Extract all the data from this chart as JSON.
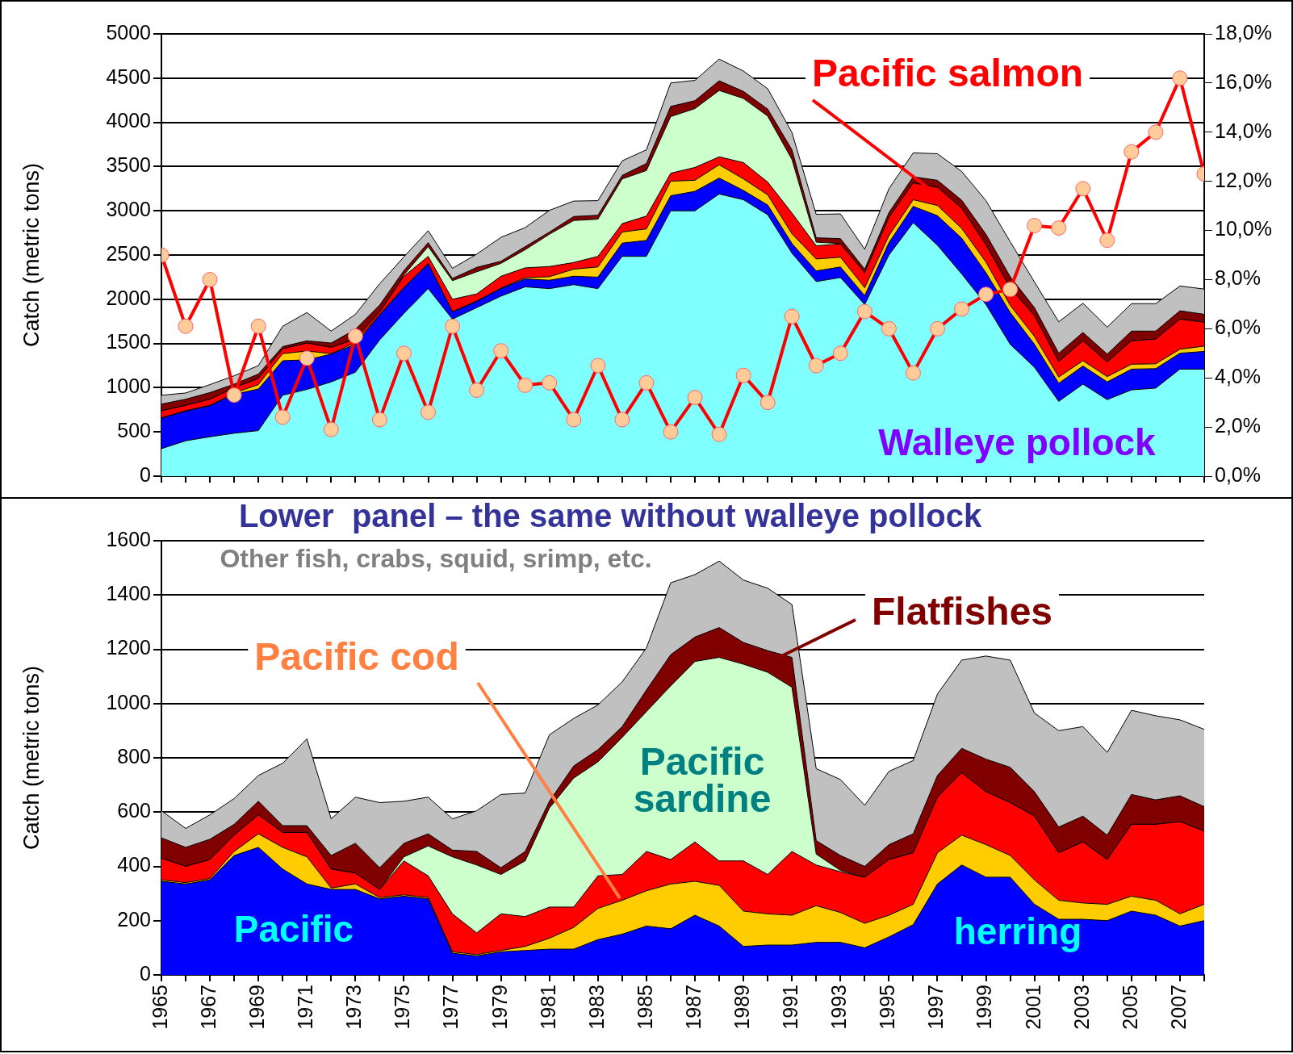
{
  "chart_data": [
    {
      "type": "area",
      "stacked": true,
      "ylabel": "Catch (metric tons)",
      "grid": "y",
      "legend": false,
      "tick_labels": "y",
      "x": [
        1965,
        1966,
        1967,
        1968,
        1969,
        1970,
        1971,
        1972,
        1973,
        1974,
        1975,
        1976,
        1977,
        1978,
        1979,
        1980,
        1981,
        1982,
        1983,
        1984,
        1985,
        1986,
        1987,
        1988,
        1989,
        1990,
        1991,
        1992,
        1993,
        1994,
        1995,
        1996,
        1997,
        1998,
        1999,
        2000,
        2001,
        2002,
        2003,
        2004,
        2005,
        2006,
        2007,
        2008
      ],
      "xlim": [
        1965,
        2008
      ],
      "xticks": [
        1965,
        1966,
        1967,
        1968,
        1969,
        1970,
        1971,
        1972,
        1973,
        1974,
        1975,
        1976,
        1977,
        1978,
        1979,
        1980,
        1981,
        1982,
        1983,
        1984,
        1985,
        1986,
        1987,
        1988,
        1989,
        1990,
        1991,
        1992,
        1993,
        1994,
        1995,
        1996,
        1997,
        1998,
        1999,
        2000,
        2001,
        2002,
        2003,
        2004,
        2005,
        2006,
        2007,
        2008
      ],
      "ylim": [
        0,
        5000
      ],
      "yticks": [
        0,
        500,
        1000,
        1500,
        2000,
        2500,
        3000,
        3500,
        4000,
        4500,
        5000
      ],
      "y2lim": [
        0,
        18
      ],
      "y2ticks": [
        {
          "value": 0,
          "label": "0,0%"
        },
        {
          "value": 2,
          "label": "2,0%"
        },
        {
          "value": 4,
          "label": "4,0%"
        },
        {
          "value": 6,
          "label": "6,0%"
        },
        {
          "value": 8,
          "label": "8,0%"
        },
        {
          "value": 10,
          "label": "10,0%"
        },
        {
          "value": 12,
          "label": "12,0%"
        },
        {
          "value": 14,
          "label": "14,0%"
        },
        {
          "value": 16,
          "label": "16,0%"
        },
        {
          "value": 18,
          "label": "18,0%"
        }
      ],
      "series": [
        {
          "name": "Walleye pollock",
          "color": "#80ffff",
          "values": [
            310,
            400,
            445,
            485,
            515,
            915,
            980,
            1065,
            1175,
            1540,
            1840,
            2120,
            1775,
            1905,
            2035,
            2140,
            2120,
            2165,
            2120,
            2485,
            2485,
            3000,
            3000,
            3190,
            3125,
            2955,
            2520,
            2200,
            2245,
            1940,
            2500,
            2865,
            2610,
            2285,
            1940,
            1490,
            1230,
            845,
            1040,
            865,
            975,
            995,
            1210,
            1210
          ]
        },
        {
          "color": "#0000ff",
          "values": [
            345,
            335,
            350,
            440,
            470,
            390,
            335,
            315,
            315,
            280,
            290,
            280,
            80,
            70,
            85,
            90,
            95,
            95,
            130,
            150,
            180,
            170,
            220,
            180,
            105,
            110,
            110,
            120,
            120,
            100,
            140,
            185,
            335,
            405,
            360,
            360,
            260,
            205,
            205,
            200,
            235,
            220,
            180,
            200
          ]
        },
        {
          "color": "#ffcc00",
          "values": [
            5,
            5,
            5,
            15,
            50,
            80,
            100,
            5,
            20,
            5,
            5,
            5,
            5,
            5,
            5,
            15,
            40,
            80,
            115,
            125,
            130,
            165,
            125,
            150,
            130,
            115,
            110,
            135,
            110,
            90,
            80,
            75,
            115,
            110,
            120,
            80,
            90,
            70,
            60,
            60,
            55,
            55,
            45,
            60
          ]
        },
        {
          "name": "Pacific salmon",
          "color": "#ff0000",
          "values": [
            80,
            60,
            70,
            60,
            70,
            55,
            90,
            70,
            40,
            30,
            125,
            80,
            140,
            80,
            135,
            110,
            115,
            75,
            120,
            95,
            145,
            90,
            145,
            90,
            185,
            145,
            235,
            150,
            150,
            170,
            205,
            190,
            205,
            230,
            195,
            195,
            235,
            175,
            225,
            165,
            265,
            280,
            340,
            270
          ]
        },
        {
          "color": "#ccffcc",
          "values": [
            0,
            0,
            0,
            0,
            0,
            0,
            0,
            0,
            0,
            0,
            15,
            110,
            210,
            250,
            145,
            205,
            365,
            475,
            420,
            505,
            515,
            640,
            665,
            750,
            725,
            745,
            605,
            40,
            5,
            0,
            0,
            0,
            0,
            0,
            0,
            0,
            0,
            0,
            0,
            0,
            0,
            0,
            0,
            0
          ]
        },
        {
          "color": "#800000",
          "values": [
            75,
            70,
            75,
            40,
            50,
            25,
            25,
            50,
            110,
            80,
            50,
            45,
            25,
            50,
            25,
            35,
            25,
            45,
            45,
            40,
            80,
            115,
            90,
            110,
            80,
            80,
            110,
            50,
            55,
            40,
            55,
            70,
            80,
            90,
            120,
            130,
            90,
            95,
            95,
            90,
            110,
            90,
            95,
            90
          ]
        },
        {
          "color": "#c0c0c0",
          "values": [
            100,
            70,
            90,
            95,
            95,
            230,
            320,
            135,
            170,
            240,
            155,
            135,
            115,
            150,
            270,
            215,
            245,
            175,
            165,
            165,
            155,
            265,
            230,
            245,
            230,
            230,
            195,
            265,
            280,
            225,
            270,
            270,
            300,
            325,
            380,
            395,
            290,
            355,
            330,
            305,
            310,
            310,
            280,
            285
          ]
        },
        {
          "type": "line",
          "axis": "y2",
          "marker": "circle",
          "color": "#ff0000",
          "values": [
            9.0,
            6.1,
            8.0,
            3.3,
            6.1,
            2.4,
            4.8,
            1.9,
            5.7,
            2.3,
            5.0,
            2.6,
            6.1,
            3.5,
            5.1,
            3.7,
            3.8,
            2.3,
            4.5,
            2.3,
            3.8,
            1.8,
            3.2,
            1.7,
            4.1,
            3.0,
            6.5,
            4.5,
            5.0,
            6.7,
            6.0,
            4.2,
            6.0,
            6.8,
            7.4,
            7.6,
            10.2,
            10.1,
            11.7,
            9.6,
            13.2,
            14.0,
            16.2,
            12.3
          ]
        }
      ]
    },
    {
      "type": "area",
      "stacked": true,
      "title": "Lower  panel – the same without walleye pollock",
      "ylabel": "Catch (metric tons)",
      "grid": "y",
      "legend": false,
      "x": [
        1965,
        1966,
        1967,
        1968,
        1969,
        1970,
        1971,
        1972,
        1973,
        1974,
        1975,
        1976,
        1977,
        1978,
        1979,
        1980,
        1981,
        1982,
        1983,
        1984,
        1985,
        1986,
        1987,
        1988,
        1989,
        1990,
        1991,
        1992,
        1993,
        1994,
        1995,
        1996,
        1997,
        1998,
        1999,
        2000,
        2001,
        2002,
        2003,
        2004,
        2005,
        2006,
        2007,
        2008
      ],
      "xlim": [
        1965,
        2008
      ],
      "xticks": [
        1965,
        {
          "value": 1966,
          "label": null
        },
        1967,
        {
          "value": 1968,
          "label": null
        },
        1969,
        {
          "value": 1970,
          "label": null
        },
        1971,
        {
          "value": 1972,
          "label": null
        },
        1973,
        {
          "value": 1974,
          "label": null
        },
        1975,
        {
          "value": 1976,
          "label": null
        },
        1977,
        {
          "value": 1978,
          "label": null
        },
        1979,
        {
          "value": 1980,
          "label": null
        },
        1981,
        {
          "value": 1982,
          "label": null
        },
        1983,
        {
          "value": 1984,
          "label": null
        },
        1985,
        {
          "value": 1986,
          "label": null
        },
        1987,
        {
          "value": 1988,
          "label": null
        },
        1989,
        {
          "value": 1990,
          "label": null
        },
        1991,
        {
          "value": 1992,
          "label": null
        },
        1993,
        {
          "value": 1994,
          "label": null
        },
        1995,
        {
          "value": 1996,
          "label": null
        },
        1997,
        {
          "value": 1998,
          "label": null
        },
        1999,
        {
          "value": 2000,
          "label": null
        },
        2001,
        {
          "value": 2002,
          "label": null
        },
        2003,
        {
          "value": 2004,
          "label": null
        },
        2005,
        {
          "value": 2006,
          "label": null
        },
        2007,
        {
          "value": 2008,
          "label": null
        }
      ],
      "ylim": [
        0,
        1600
      ],
      "yticks": [
        0,
        200,
        400,
        600,
        800,
        1000,
        1200,
        1400,
        1600
      ],
      "series": [
        {
          "name": "Pacific herring",
          "color": "#0000ff",
          "values": [
            345,
            335,
            350,
            440,
            470,
            390,
            335,
            315,
            315,
            280,
            290,
            280,
            80,
            70,
            85,
            90,
            95,
            95,
            130,
            150,
            180,
            170,
            220,
            180,
            105,
            110,
            110,
            120,
            120,
            100,
            140,
            185,
            335,
            405,
            360,
            360,
            260,
            205,
            205,
            200,
            235,
            220,
            180,
            200
          ]
        },
        {
          "name": "Pacific cod",
          "color": "#ffcc00",
          "values": [
            5,
            5,
            5,
            15,
            50,
            80,
            100,
            5,
            20,
            5,
            5,
            5,
            5,
            5,
            5,
            15,
            40,
            80,
            115,
            125,
            130,
            165,
            125,
            150,
            130,
            115,
            110,
            135,
            110,
            90,
            80,
            75,
            115,
            110,
            120,
            80,
            90,
            70,
            60,
            60,
            55,
            55,
            45,
            60
          ]
        },
        {
          "color": "#ff0000",
          "values": [
            80,
            60,
            70,
            60,
            70,
            55,
            90,
            70,
            40,
            30,
            125,
            80,
            140,
            80,
            135,
            110,
            115,
            75,
            120,
            95,
            145,
            90,
            145,
            90,
            185,
            145,
            235,
            150,
            150,
            170,
            205,
            190,
            205,
            230,
            195,
            195,
            235,
            175,
            225,
            165,
            265,
            280,
            340,
            270
          ]
        },
        {
          "name": "Pacific sardine",
          "color": "#ccffcc",
          "values": [
            0,
            0,
            0,
            0,
            0,
            0,
            0,
            0,
            0,
            0,
            15,
            110,
            210,
            250,
            145,
            205,
            365,
            475,
            420,
            505,
            515,
            640,
            665,
            750,
            725,
            745,
            605,
            40,
            5,
            0,
            0,
            0,
            0,
            0,
            0,
            0,
            0,
            0,
            0,
            0,
            0,
            0,
            0,
            0
          ]
        },
        {
          "name": "Flatfishes",
          "color": "#800000",
          "values": [
            75,
            70,
            75,
            40,
            50,
            25,
            25,
            50,
            110,
            80,
            50,
            45,
            25,
            50,
            25,
            35,
            25,
            45,
            45,
            40,
            80,
            115,
            90,
            110,
            80,
            80,
            110,
            50,
            55,
            40,
            55,
            70,
            80,
            90,
            120,
            130,
            90,
            95,
            95,
            90,
            110,
            90,
            95,
            90
          ]
        },
        {
          "name": "Other fish, crabs, squid, srimp, etc.",
          "color": "#c0c0c0",
          "values": [
            100,
            70,
            90,
            95,
            95,
            230,
            320,
            135,
            170,
            240,
            155,
            135,
            115,
            150,
            270,
            215,
            245,
            175,
            165,
            165,
            155,
            265,
            230,
            245,
            230,
            230,
            195,
            265,
            280,
            225,
            270,
            270,
            300,
            325,
            380,
            395,
            290,
            355,
            330,
            305,
            310,
            310,
            280,
            285
          ]
        }
      ]
    }
  ]
}
